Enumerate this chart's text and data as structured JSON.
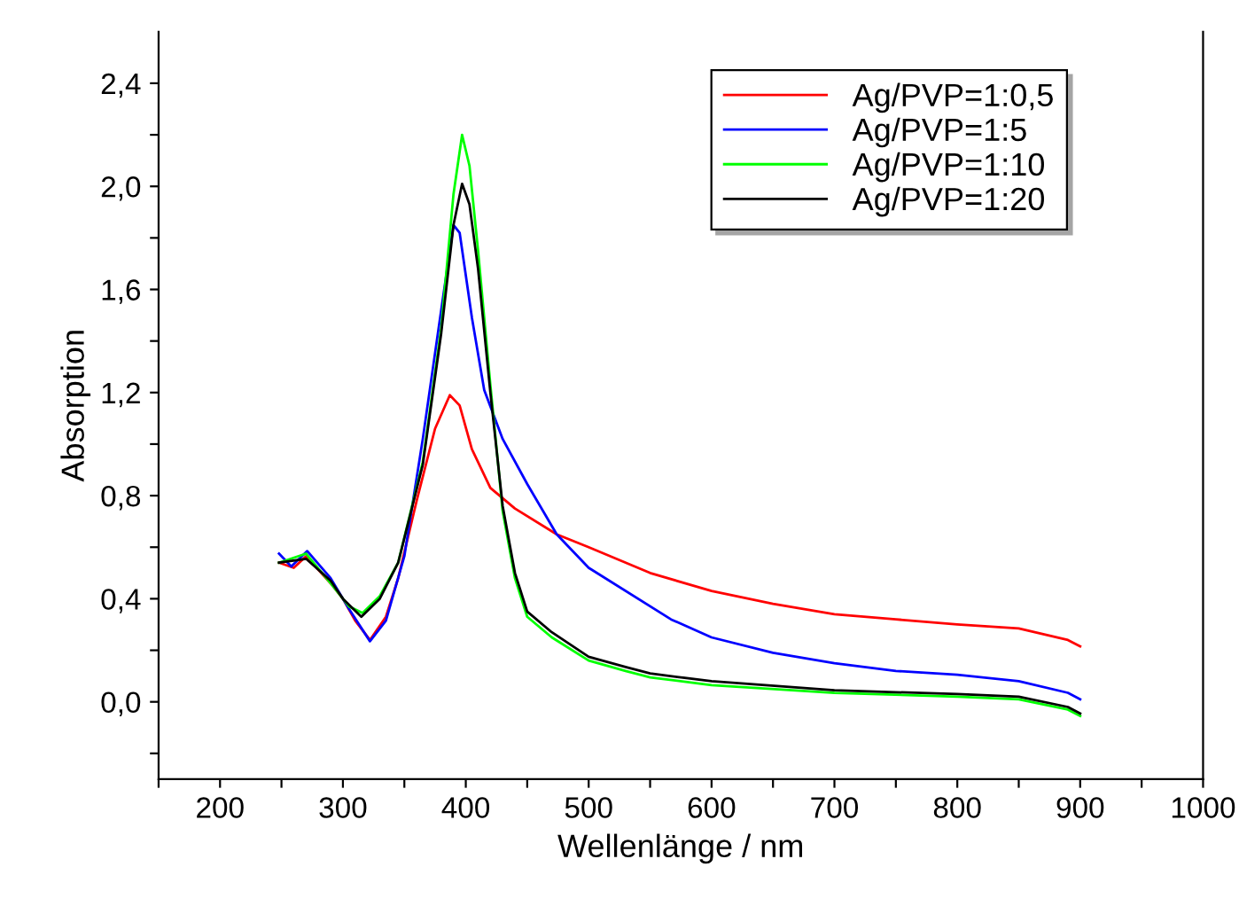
{
  "chart_data": {
    "type": "line",
    "xlabel": "Wellenlänge / nm",
    "ylabel": "Absorption",
    "xlim": [
      150,
      1000
    ],
    "ylim": [
      -0.3,
      2.6
    ],
    "xticks": [
      {
        "value": 150,
        "label": null
      },
      200,
      {
        "value": 250,
        "label": null
      },
      300,
      {
        "value": 350,
        "label": null
      },
      400,
      {
        "value": 450,
        "label": null
      },
      500,
      {
        "value": 550,
        "label": null
      },
      600,
      {
        "value": 650,
        "label": null
      },
      700,
      {
        "value": 750,
        "label": null
      },
      800,
      {
        "value": 850,
        "label": null
      },
      900,
      {
        "value": 950,
        "label": null
      },
      1000
    ],
    "yticks": [
      {
        "value": -0.2,
        "label": null
      },
      {
        "value": 0.0,
        "label": "0,0"
      },
      {
        "value": 0.2,
        "label": null
      },
      {
        "value": 0.4,
        "label": "0,4"
      },
      {
        "value": 0.6,
        "label": null
      },
      {
        "value": 0.8,
        "label": "0,8"
      },
      {
        "value": 1.0,
        "label": null
      },
      {
        "value": 1.2,
        "label": "1,2"
      },
      {
        "value": 1.4,
        "label": null
      },
      {
        "value": 1.6,
        "label": "1,6"
      },
      {
        "value": 1.8,
        "label": null
      },
      {
        "value": 2.0,
        "label": "2,0"
      },
      {
        "value": 2.2,
        "label": null
      },
      {
        "value": 2.4,
        "label": "2,4"
      }
    ],
    "grid": false,
    "legend": "top right",
    "marker": "none",
    "line_style": "solid",
    "series": [
      {
        "name": "Ag/PVP=1:0,5",
        "color": "#ff0000",
        "x": [
          248,
          260,
          270,
          290,
          300,
          310,
          322,
          335,
          345,
          360,
          375,
          387,
          395,
          405,
          420,
          440,
          474,
          500,
          550,
          600,
          650,
          700,
          750,
          800,
          850,
          890,
          900
        ],
        "values": [
          0.54,
          0.52,
          0.565,
          0.46,
          0.4,
          0.315,
          0.24,
          0.33,
          0.48,
          0.78,
          1.06,
          1.19,
          1.15,
          0.98,
          0.83,
          0.75,
          0.65,
          0.6,
          0.5,
          0.43,
          0.38,
          0.34,
          0.32,
          0.3,
          0.285,
          0.24,
          0.215
        ]
      },
      {
        "name": "Ag/PVP=1:5",
        "color": "#0000ff",
        "x": [
          248,
          258,
          271,
          290,
          305,
          322,
          335,
          350,
          365,
          380,
          390,
          395,
          405,
          415,
          430,
          450,
          474,
          500,
          567,
          600,
          650,
          700,
          750,
          800,
          850,
          890,
          900
        ],
        "values": [
          0.575,
          0.525,
          0.585,
          0.48,
          0.36,
          0.235,
          0.315,
          0.565,
          1.02,
          1.52,
          1.85,
          1.82,
          1.49,
          1.21,
          1.02,
          0.845,
          0.65,
          0.52,
          0.32,
          0.25,
          0.19,
          0.15,
          0.12,
          0.105,
          0.08,
          0.035,
          0.01
        ]
      },
      {
        "name": "Ag/PVP=1:10",
        "color": "#00ff00",
        "x": [
          248,
          270,
          290,
          305,
          316,
          330,
          345,
          365,
          380,
          390,
          397,
          403,
          410,
          420,
          430,
          440,
          450,
          470,
          500,
          530,
          550,
          600,
          700,
          800,
          850,
          890,
          900
        ],
        "values": [
          0.54,
          0.575,
          0.46,
          0.37,
          0.345,
          0.41,
          0.54,
          0.93,
          1.45,
          1.97,
          2.2,
          2.08,
          1.75,
          1.23,
          0.74,
          0.48,
          0.33,
          0.25,
          0.16,
          0.12,
          0.095,
          0.065,
          0.035,
          0.02,
          0.01,
          -0.03,
          -0.055
        ]
      },
      {
        "name": "Ag/PVP=1:20",
        "color": "#000000",
        "x": [
          248,
          270,
          290,
          300,
          315,
          330,
          345,
          365,
          380,
          390,
          397,
          403,
          410,
          420,
          430,
          440,
          450,
          470,
          500,
          530,
          550,
          600,
          700,
          800,
          850,
          890,
          900
        ],
        "values": [
          0.54,
          0.555,
          0.47,
          0.4,
          0.33,
          0.4,
          0.54,
          0.92,
          1.43,
          1.85,
          2.01,
          1.93,
          1.68,
          1.2,
          0.76,
          0.5,
          0.35,
          0.27,
          0.175,
          0.135,
          0.11,
          0.08,
          0.045,
          0.03,
          0.02,
          -0.02,
          -0.045
        ]
      }
    ]
  }
}
